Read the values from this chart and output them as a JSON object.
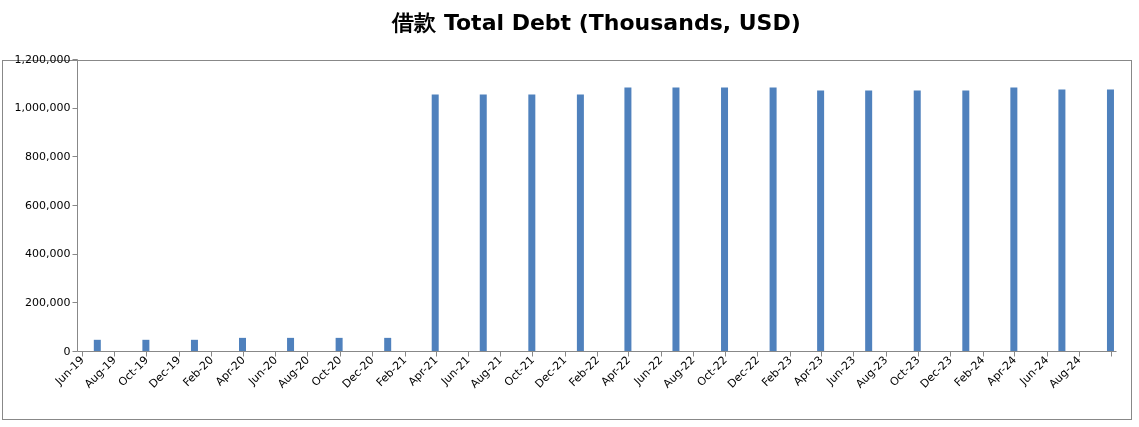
{
  "chart_data": {
    "type": "bar",
    "title": "借款 Total Debt (Thousands, USD)",
    "x": [
      "2019-06-30",
      "2019-09-30",
      "2019-12-31",
      "2020-03-31",
      "2020-06-30",
      "2020-09-30",
      "2020-12-31",
      "2021-03-31",
      "2021-06-30",
      "2021-09-30",
      "2021-12-31",
      "2022-03-31",
      "2022-06-30",
      "2022-09-30",
      "2022-12-31",
      "2023-03-31",
      "2023-06-30",
      "2023-09-30",
      "2023-12-31",
      "2024-03-31",
      "2024-06-30",
      "2024-09-30"
    ],
    "values": [
      46000,
      46000,
      46000,
      54000,
      54000,
      54000,
      54000,
      1054000,
      1054000,
      1054000,
      1054000,
      1083000,
      1083000,
      1083000,
      1083000,
      1071000,
      1071000,
      1071000,
      1071000,
      1083000,
      1075000,
      1075000
    ],
    "color": "#4f81bd",
    "xlim": [
      "2019-06-01",
      "2024-10-01"
    ],
    "xticks": [
      {
        "value": "2019-06-01",
        "label": "Jun-19"
      },
      {
        "value": "2019-08-01",
        "label": "Aug-19"
      },
      {
        "value": "2019-10-01",
        "label": "Oct-19"
      },
      {
        "value": "2019-12-01",
        "label": "Dec-19"
      },
      {
        "value": "2020-02-01",
        "label": "Feb-20"
      },
      {
        "value": "2020-04-01",
        "label": "Apr-20"
      },
      {
        "value": "2020-06-01",
        "label": "Jun-20"
      },
      {
        "value": "2020-08-01",
        "label": "Aug-20"
      },
      {
        "value": "2020-10-01",
        "label": "Oct-20"
      },
      {
        "value": "2020-12-01",
        "label": "Dec-20"
      },
      {
        "value": "2021-02-01",
        "label": "Feb-21"
      },
      {
        "value": "2021-04-01",
        "label": "Apr-21"
      },
      {
        "value": "2021-06-01",
        "label": "Jun-21"
      },
      {
        "value": "2021-08-01",
        "label": "Aug-21"
      },
      {
        "value": "2021-10-01",
        "label": "Oct-21"
      },
      {
        "value": "2021-12-01",
        "label": "Dec-21"
      },
      {
        "value": "2022-02-01",
        "label": "Feb-22"
      },
      {
        "value": "2022-04-01",
        "label": "Apr-22"
      },
      {
        "value": "2022-06-01",
        "label": "Jun-22"
      },
      {
        "value": "2022-08-01",
        "label": "Aug-22"
      },
      {
        "value": "2022-10-01",
        "label": "Oct-22"
      },
      {
        "value": "2022-12-01",
        "label": "Dec-22"
      },
      {
        "value": "2023-02-01",
        "label": "Feb-23"
      },
      {
        "value": "2023-04-01",
        "label": "Apr-23"
      },
      {
        "value": "2023-06-01",
        "label": "Jun-23"
      },
      {
        "value": "2023-08-01",
        "label": "Aug-23"
      },
      {
        "value": "2023-10-01",
        "label": "Oct-23"
      },
      {
        "value": "2023-12-01",
        "label": "Dec-23"
      },
      {
        "value": "2024-02-01",
        "label": "Feb-24"
      },
      {
        "value": "2024-04-01",
        "label": "Apr-24"
      },
      {
        "value": "2024-06-01",
        "label": "Jun-24"
      },
      {
        "value": "2024-08-01",
        "label": "Aug-24"
      },
      {
        "value": "2024-10-01",
        "label": null
      }
    ],
    "ylim": [
      0,
      1200000
    ],
    "yticks": [
      0,
      {
        "value": 200000,
        "label": "200,000"
      },
      {
        "value": 400000,
        "label": "400,000"
      },
      {
        "value": 600000,
        "label": "600,000"
      },
      {
        "value": 800000,
        "label": "800,000"
      },
      {
        "value": 1000000,
        "label": "1,000,000"
      },
      {
        "value": 1200000,
        "label": "1,200,000"
      }
    ],
    "grid": false
  }
}
